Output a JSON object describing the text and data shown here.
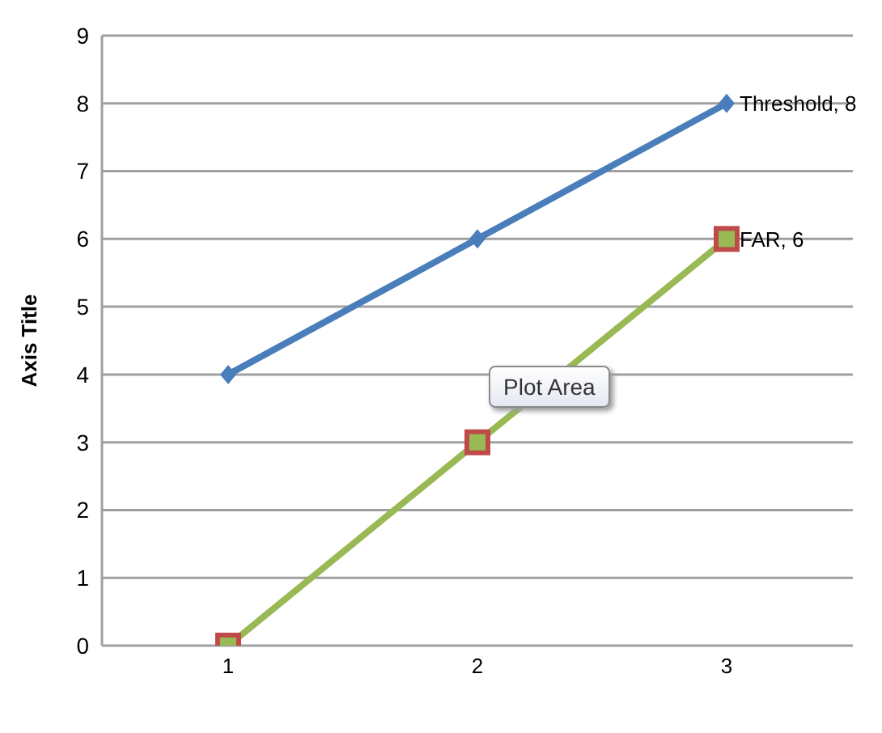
{
  "chart_data": {
    "type": "line",
    "ylabel": "Axis Title",
    "categories": [
      "1",
      "2",
      "3"
    ],
    "series": [
      {
        "color": "#4a7ebb",
        "marker": "diamond",
        "values": [
          4,
          6,
          8
        ]
      },
      {
        "type": "scatter",
        "color": "#be4b48",
        "marker": "square",
        "values": [
          0,
          3,
          6
        ]
      },
      {
        "color": "#98b954",
        "marker": "square",
        "values": [
          0,
          3,
          6
        ]
      }
    ],
    "ylim": [
      0,
      9
    ],
    "yticks": [
      0,
      1,
      2,
      3,
      4,
      5,
      6,
      7,
      8,
      9
    ],
    "grid": "y",
    "annotations": [
      {
        "text": "Threshold, 8",
        "x": "3",
        "y": 8
      },
      {
        "text": "FAR, 6",
        "x": "3",
        "y": 6
      },
      "Plot Area"
    ]
  }
}
